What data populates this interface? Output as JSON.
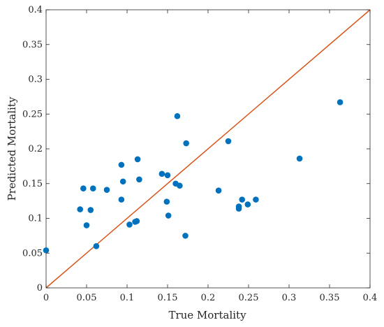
{
  "chart_data": {
    "type": "scatter",
    "xlabel": "True Mortality",
    "ylabel": "Predicted Mortality",
    "xlim": [
      0,
      0.4
    ],
    "ylim": [
      0,
      0.4
    ],
    "x_ticks": [
      "0",
      "0.05",
      "0.1",
      "0.15",
      "0.2",
      "0.25",
      "0.3",
      "0.35",
      "0.4"
    ],
    "y_ticks": [
      "0",
      "0.05",
      "0.1",
      "0.15",
      "0.2",
      "0.25",
      "0.3",
      "0.35",
      "0.4"
    ],
    "grid": false,
    "box": true,
    "reference_line": {
      "x": [
        0,
        0.4
      ],
      "y": [
        0,
        0.4
      ],
      "color": "#d95319"
    },
    "marker_color": "#0072bd",
    "series": [
      {
        "x": [
          0.0,
          0.042,
          0.046,
          0.05,
          0.055,
          0.058,
          0.062,
          0.075,
          0.093,
          0.093,
          0.095,
          0.103,
          0.11,
          0.112,
          0.113,
          0.115,
          0.143,
          0.149,
          0.15,
          0.151,
          0.16,
          0.162,
          0.165,
          0.172,
          0.173,
          0.213,
          0.225,
          0.238,
          0.238,
          0.242,
          0.249,
          0.259,
          0.313,
          0.363
        ],
        "y": [
          0.054,
          0.113,
          0.143,
          0.09,
          0.112,
          0.143,
          0.06,
          0.141,
          0.177,
          0.127,
          0.153,
          0.091,
          0.095,
          0.096,
          0.185,
          0.156,
          0.164,
          0.124,
          0.162,
          0.104,
          0.15,
          0.247,
          0.147,
          0.075,
          0.208,
          0.14,
          0.211,
          0.114,
          0.117,
          0.127,
          0.12,
          0.127,
          0.186,
          0.267
        ]
      }
    ]
  }
}
